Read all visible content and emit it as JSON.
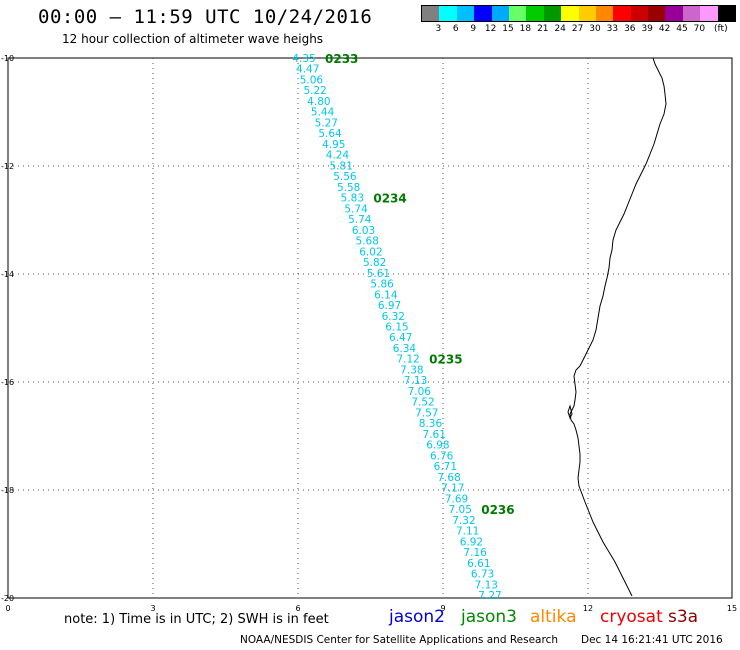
{
  "header": {
    "title": "00:00 – 11:59 UTC 10/24/2016",
    "subtitle": "12 hour collection of altimeter wave heighs"
  },
  "legend": {
    "colors": [
      "#808080",
      "#00ffff",
      "#00bfff",
      "#0000ff",
      "#00aaff",
      "#66ff66",
      "#00cc00",
      "#009900",
      "#ffff00",
      "#ffcc00",
      "#ff8800",
      "#ff0000",
      "#cc0000",
      "#990000",
      "#990099",
      "#cc66cc",
      "#ff99ff",
      "#000000"
    ],
    "labels": [
      "3",
      "6",
      "9",
      "12",
      "15",
      "18",
      "21",
      "24",
      "27",
      "30",
      "33",
      "36",
      "39",
      "42",
      "45",
      "70",
      "(ft)"
    ]
  },
  "axes": {
    "y_labels": [
      "-10",
      "-12",
      "-14",
      "-16",
      "-18",
      "-20"
    ],
    "x_labels": [
      "0",
      "3",
      "6",
      "9",
      "12",
      "15"
    ]
  },
  "track": {
    "color": "#00c8e8",
    "heights": [
      "4.35",
      "4.47",
      "5.06",
      "5.22",
      "4.80",
      "5.44",
      "5.27",
      "5.64",
      "4.95",
      "4.24",
      "5.81",
      "5.56",
      "5.58",
      "5.83",
      "5.74",
      "5.74",
      "6.03",
      "5.68",
      "6.02",
      "5.82",
      "5.61",
      "5.86",
      "6.14",
      "6.97",
      "6.32",
      "6.15",
      "6.47",
      "6.34",
      "7.12",
      "7.38",
      "7.13",
      "7.06",
      "7.52",
      "7.57",
      "8.36",
      "7.61",
      "6.98",
      "6.76",
      "6.71",
      "7.68",
      "7.17",
      "7.69",
      "7.05",
      "7.32",
      "7.11",
      "6.92",
      "7.16",
      "6.61",
      "6.73",
      "7.13",
      "7.27"
    ]
  },
  "time_labels": {
    "color": "#007a00",
    "items": [
      {
        "text": "0233",
        "after_index": 0
      },
      {
        "text": "0234",
        "after_index": 13
      },
      {
        "text": "0235",
        "after_index": 28
      },
      {
        "text": "0236",
        "after_index": 42
      }
    ]
  },
  "footer": {
    "note": "note: 1) Time is in UTC; 2) SWH is in feet",
    "satellites": [
      {
        "name": "jason2",
        "color": "#0000dd"
      },
      {
        "name": "jason3",
        "color": "#008800"
      },
      {
        "name": "altika",
        "color": "#ff8800"
      },
      {
        "name": "cryosat",
        "color": "#ee0000"
      },
      {
        "name": "s3a",
        "color": "#880000"
      }
    ],
    "credit": "NOAA/NESDIS Center for Satellite Applications and Research",
    "timestamp": "Dec 14 16:21:41 UTC 2016"
  }
}
